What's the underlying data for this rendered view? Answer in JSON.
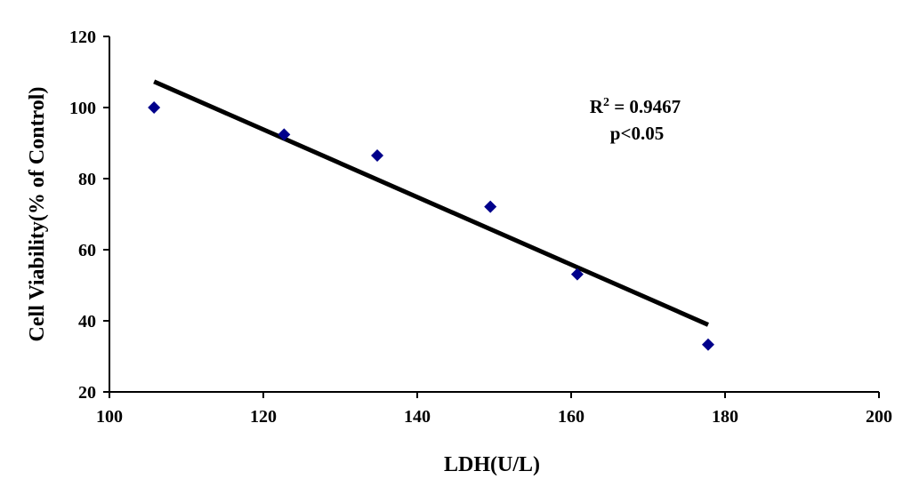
{
  "chart_data": {
    "type": "scatter",
    "xlabel": "LDH(U/L)",
    "ylabel": "Cell Viability(%  of Control)",
    "xlim": [
      100,
      200
    ],
    "ylim": [
      20,
      120
    ],
    "xticks": [
      "100",
      "120",
      "140",
      "160",
      "180",
      "200"
    ],
    "yticks": [
      "20",
      "40",
      "60",
      "80",
      "100",
      "120"
    ],
    "grid": false,
    "legend": "none",
    "marker": "diamond",
    "marker_color": "#00008b",
    "points": [
      {
        "x": 105.8,
        "y": 100.0
      },
      {
        "x": 122.7,
        "y": 92.4
      },
      {
        "x": 134.8,
        "y": 86.5
      },
      {
        "x": 149.5,
        "y": 72.1
      },
      {
        "x": 160.8,
        "y": 53.1
      },
      {
        "x": 177.8,
        "y": 33.3
      }
    ],
    "trendline": {
      "x": [
        105.8,
        177.8
      ],
      "y": [
        107.3,
        38.9
      ],
      "color": "#000000"
    },
    "annotations": {
      "r2_base": "R",
      "r2_sup": "2",
      "r2_value": " = 0.9467",
      "p_value": "p<0.05"
    }
  }
}
